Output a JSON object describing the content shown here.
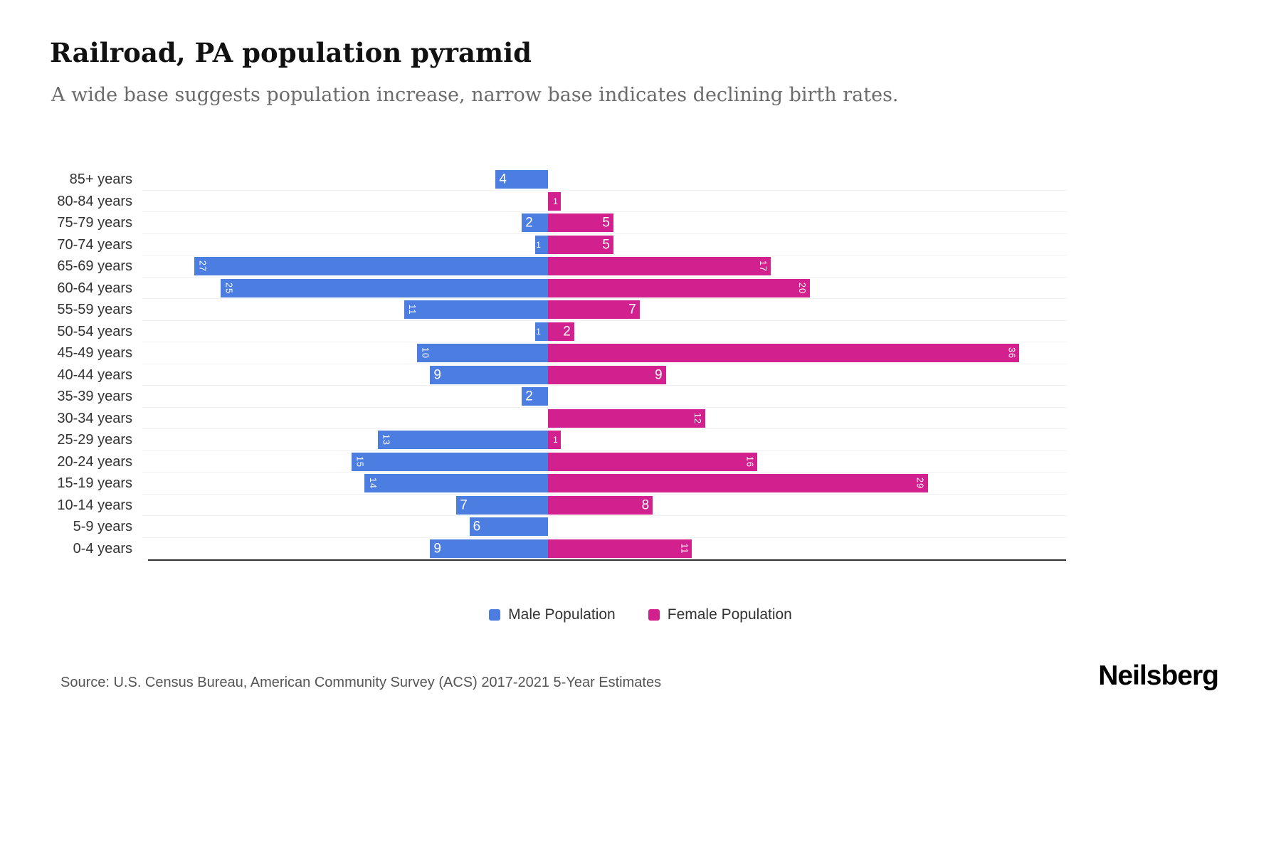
{
  "title": "Railroad, PA population pyramid",
  "subtitle": "A wide base suggests population increase, narrow base indicates declining birth rates.",
  "source": "Source: U.S. Census Bureau, American Community Survey (ACS) 2017-2021 5-Year Estimates",
  "logo": "Neilsberg",
  "legend": {
    "male": "Male Population",
    "female": "Female Population"
  },
  "colors": {
    "male": "#4C7DE0",
    "female": "#D2218F",
    "axis": "#333333"
  },
  "chart_data": {
    "type": "bar",
    "subtype": "population-pyramid",
    "orientation": "horizontal",
    "title": "Railroad, PA population pyramid",
    "categories": [
      "85+ years",
      "80-84 years",
      "75-79 years",
      "70-74 years",
      "65-69 years",
      "60-64 years",
      "55-59 years",
      "50-54 years",
      "45-49 years",
      "40-44 years",
      "35-39 years",
      "30-34 years",
      "25-29 years",
      "20-24 years",
      "15-19 years",
      "10-14 years",
      "5-9 years",
      "0-4 years"
    ],
    "series": [
      {
        "name": "Male Population",
        "side": "left",
        "values": [
          4,
          0,
          2,
          1,
          27,
          25,
          11,
          1,
          10,
          9,
          2,
          0,
          13,
          15,
          14,
          7,
          6,
          9
        ]
      },
      {
        "name": "Female Population",
        "side": "right",
        "values": [
          0,
          1,
          5,
          5,
          17,
          20,
          7,
          2,
          36,
          9,
          0,
          12,
          1,
          16,
          29,
          8,
          0,
          11
        ]
      }
    ],
    "xlim": [
      -40,
      40
    ],
    "value_labels": "inside-end",
    "grid": "faint-horizontal",
    "legend_position": "bottom"
  }
}
